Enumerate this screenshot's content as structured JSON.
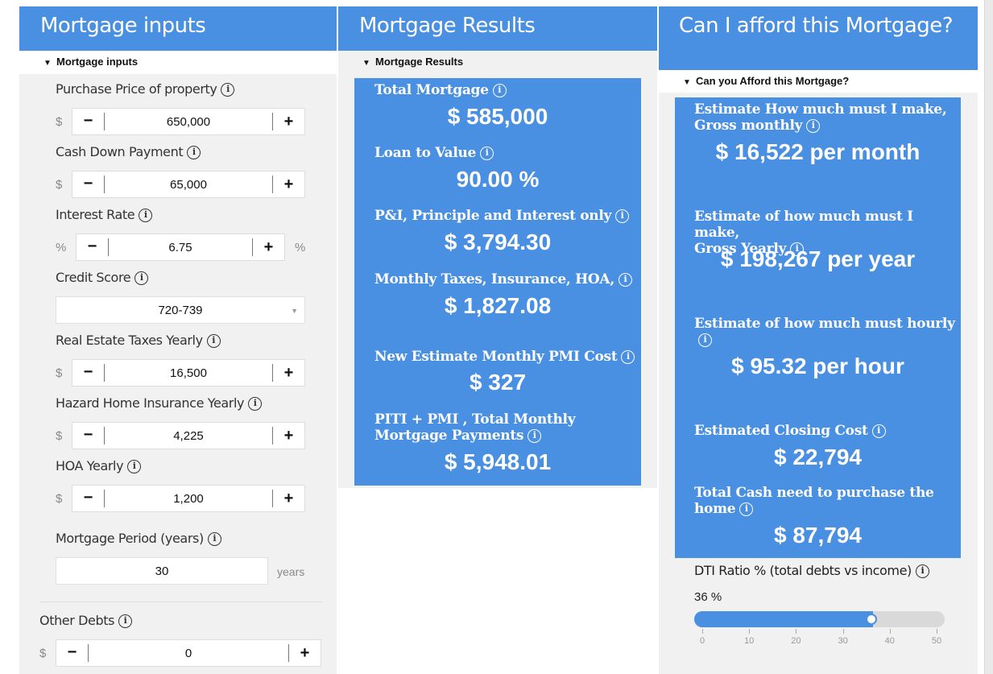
{
  "inputs": {
    "header": "Mortgage inputs",
    "section": "Mortgage inputs",
    "purchase_price": {
      "label": "Purchase Price of property",
      "unit": "$",
      "value": "650,000"
    },
    "down_payment": {
      "label": "Cash Down Payment",
      "unit": "$",
      "value": "65,000"
    },
    "interest_rate": {
      "label": "Interest Rate",
      "unit": "%",
      "value": "6.75",
      "suffix": "%"
    },
    "credit_score": {
      "label": "Credit Score",
      "value": "720-739"
    },
    "taxes": {
      "label": "Real Estate Taxes Yearly",
      "unit": "$",
      "value": "16,500"
    },
    "insurance": {
      "label": "Hazard Home Insurance Yearly",
      "unit": "$",
      "value": "4,225"
    },
    "hoa": {
      "label": "HOA Yearly",
      "unit": "$",
      "value": "1,200"
    },
    "period": {
      "label": "Mortgage Period (years)",
      "value": "30",
      "suffix": "years"
    },
    "other_debts": {
      "label": "Other Debts",
      "unit": "$",
      "value": "0"
    },
    "minus": "−",
    "plus": "+",
    "info": "i"
  },
  "results": {
    "header": "Mortgage Results",
    "section": "Mortgage Results",
    "total_mortgage": {
      "label": "Total Mortgage",
      "value": "$ 585,000"
    },
    "ltv": {
      "label": "Loan to Value",
      "value": "90.00 %"
    },
    "pi": {
      "label": "P&I, Principle and Interest only",
      "value": "$ 3,794.30"
    },
    "monthly_taxes": {
      "label": "Monthly Taxes, Insurance, HOA,",
      "value": "$ 1,827.08"
    },
    "pmi": {
      "label": "New Estimate Monthly PMI Cost",
      "value": "$ 327"
    },
    "piti": {
      "label_1": "PITI + PMI , Total Monthly",
      "label_2": "Mortgage Payments",
      "value": "$ 5,948.01"
    }
  },
  "afford": {
    "header": "Can I afford this Mortgage?",
    "section": "Can you Afford this Mortgage?",
    "monthly": {
      "label_1": "Estimate How much must I make,",
      "label_2": "Gross monthly",
      "value": "$ 16,522 per month"
    },
    "yearly": {
      "label_1": "Estimate of how much must I make,",
      "label_2": "Gross Yearly",
      "value": "$ 198,267 per year"
    },
    "hourly": {
      "label_1": "Estimate of how much must hourly",
      "value": "$ 95.32 per hour"
    },
    "closing": {
      "label": "Estimated Closing Cost",
      "value": "$ 22,794"
    },
    "cash": {
      "label_1": "Total Cash need to purchase the",
      "label_2": "home",
      "value": "$ 87,794"
    },
    "dti": {
      "label": "DTI Ratio % (total debts vs income)",
      "value_text": "36 %",
      "value": 36,
      "min": 0,
      "max": 50,
      "ticks": [
        "0",
        "10",
        "20",
        "30",
        "40",
        "50"
      ]
    }
  },
  "colors": {
    "accent": "#4a90e2",
    "panel": "#f1f1f1"
  }
}
